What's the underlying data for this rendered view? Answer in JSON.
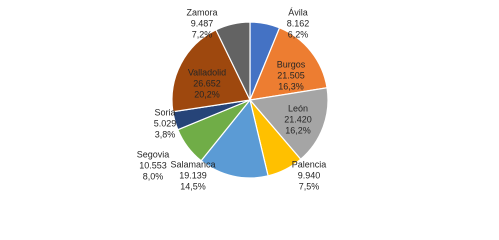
{
  "chart_data": {
    "type": "pie",
    "categories": [
      "Ávila",
      "Burgos",
      "León",
      "Palencia",
      "Salamanca",
      "Segovia",
      "Soria",
      "Valladolid",
      "Zamora"
    ],
    "values": [
      8162,
      21505,
      21420,
      9940,
      19139,
      10553,
      5029,
      26652,
      9487
    ],
    "value_labels": [
      "8.162",
      "21.505",
      "21.420",
      "9.940",
      "19.139",
      "10.553",
      "5.029",
      "26.652",
      "9.487"
    ],
    "percents": [
      6.2,
      16.3,
      16.2,
      7.5,
      14.5,
      8.0,
      3.8,
      20.2,
      7.2
    ],
    "percent_labels": [
      "6,2%",
      "16,3%",
      "16,2%",
      "7,5%",
      "14,5%",
      "8,0%",
      "3,8%",
      "20,2%",
      "7,2%"
    ],
    "colors": [
      "#4472c4",
      "#ed7d31",
      "#a5a5a5",
      "#ffc000",
      "#5b9bd5",
      "#70ad47",
      "#264478",
      "#9e480e",
      "#636363"
    ]
  }
}
